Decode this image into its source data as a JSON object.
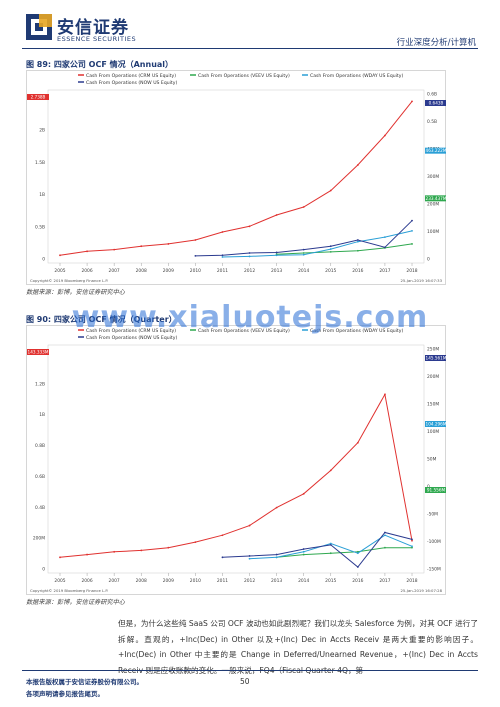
{
  "header": {
    "brand_cn": "安信证券",
    "brand_en": "ESSENCE SECURITIES",
    "report_type": "行业深度分析/计算机"
  },
  "figures": [
    {
      "title": "图 89:  四家公司 OCF 情况（Annual）",
      "source": "数据来源：彭博，安信证券研究中心",
      "copyright": "Copyright© 2019 Bloomberg Finance L.P.",
      "stamp": "25-Jan-2019 16:07:33",
      "legend": [
        "Cash From Operations (CRM US Equity)",
        "Cash From Operations (VEEV US Equity)",
        "Cash From Operations (WDAY US Equity)",
        "Cash From Operations (NOW US Equity)"
      ],
      "left_ticks": [
        "2.5B",
        "2B",
        "1.5B",
        "1B",
        "0.5B",
        "0"
      ],
      "right_ticks": [
        "0.6B",
        "0.5B",
        "400M",
        "300M",
        "200M",
        "100M",
        "0"
      ],
      "x_years": [
        "2005",
        "2006",
        "2007",
        "2008",
        "2009",
        "2010",
        "2011",
        "2012",
        "2013",
        "2014",
        "2015",
        "2016",
        "2017",
        "2018"
      ],
      "value_tags": [
        {
          "text": "2.738B",
          "color": "#e0312f",
          "side": "left"
        },
        {
          "text": "0.643B",
          "color": "#2b3a8f",
          "side": "right"
        },
        {
          "text": "463.222M",
          "color": "#2a9fd6",
          "side": "right"
        },
        {
          "text": "233.437M",
          "color": "#2fa84f",
          "side": "right"
        }
      ]
    },
    {
      "title": "图 90:  四家公司 OCF 情况（Quarter）",
      "source": "数据来源：彭博，安信证券研究中心",
      "copyright": "Copyright© 2019 Bloomberg Finance L.P.",
      "stamp": "25-Jan-2019 16:07:28",
      "legend": [
        "Cash From Operations (CRM US Equity)",
        "Cash From Operations (VEEV US Equity)",
        "Cash From Operations (WDAY US Equity)",
        "Cash From Operations (NOW US Equity)"
      ],
      "left_ticks": [
        "1.4B",
        "1.2B",
        "1B",
        "0.8B",
        "0.6B",
        "0.4B",
        "200M",
        "0"
      ],
      "right_ticks": [
        "250M",
        "200M",
        "150M",
        "100M",
        "50M",
        "0",
        "-50M",
        "-100M",
        "-150M"
      ],
      "x_years": [
        "2005",
        "2006",
        "2007",
        "2008",
        "2009",
        "2010",
        "2011",
        "2012",
        "2013",
        "2014",
        "2015",
        "2016",
        "2017",
        "2018"
      ],
      "value_tags": [
        {
          "text": "143.333M",
          "color": "#e0312f",
          "side": "left"
        },
        {
          "text": "145.561M",
          "color": "#2b3a8f",
          "side": "right"
        },
        {
          "text": "104.296M",
          "color": "#2a9fd6",
          "side": "right"
        },
        {
          "text": "91.556M",
          "color": "#2fa84f",
          "side": "right"
        }
      ]
    }
  ],
  "series_colors": {
    "CRM": "#e0312f",
    "VEEV": "#2fa84f",
    "WDAY": "#2a9fd6",
    "NOW": "#2b3a8f"
  },
  "chart_data": [
    {
      "type": "line",
      "title": "",
      "x": [
        "2005",
        "2006",
        "2007",
        "2008",
        "2009",
        "2010",
        "2011",
        "2012",
        "2013",
        "2014",
        "2015",
        "2016",
        "2017",
        "2018"
      ],
      "series": [
        {
          "name": "Cash From Operations (CRM US Equity)",
          "values": [
            0.03,
            0.1,
            0.13,
            0.19,
            0.23,
            0.3,
            0.44,
            0.54,
            0.74,
            0.88,
            1.17,
            1.62,
            2.14,
            2.74
          ]
        },
        {
          "name": "Cash From Operations (VEEV US Equity)",
          "values": [
            null,
            null,
            null,
            null,
            null,
            null,
            null,
            null,
            0.05,
            0.07,
            0.09,
            0.11,
            0.16,
            0.23
          ]
        },
        {
          "name": "Cash From Operations (WDAY US Equity)",
          "values": [
            null,
            null,
            null,
            null,
            null,
            null,
            0.0,
            0.01,
            0.03,
            0.04,
            0.14,
            0.27,
            0.35,
            0.46
          ]
        },
        {
          "name": "Cash From Operations (NOW US Equity)",
          "values": [
            null,
            null,
            null,
            null,
            null,
            0.02,
            0.03,
            0.07,
            0.08,
            0.13,
            0.19,
            0.3,
            0.17,
            0.64
          ]
        }
      ],
      "ylim": [
        0,
        2.8
      ],
      "grid": false,
      "legend": "top-left"
    },
    {
      "type": "line",
      "title": "",
      "x": [
        "2005",
        "2006",
        "2007",
        "2008",
        "2009",
        "2010",
        "2011",
        "2012",
        "2013",
        "2014",
        "2015",
        "2016",
        "2017",
        "2018"
      ],
      "series": [
        {
          "name": "Cash From Operations (CRM US Equity)",
          "values": [
            0.02,
            0.04,
            0.06,
            0.07,
            0.09,
            0.13,
            0.18,
            0.25,
            0.38,
            0.48,
            0.65,
            0.85,
            1.2,
            0.14
          ]
        },
        {
          "name": "Cash From Operations (VEEV US Equity)",
          "values": [
            null,
            null,
            null,
            null,
            null,
            null,
            null,
            null,
            0.02,
            0.04,
            0.05,
            0.06,
            0.09,
            0.09
          ]
        },
        {
          "name": "Cash From Operations (WDAY US Equity)",
          "values": [
            null,
            null,
            null,
            null,
            null,
            null,
            null,
            0.01,
            0.02,
            0.06,
            0.12,
            0.05,
            0.18,
            0.1
          ]
        },
        {
          "name": "Cash From Operations (NOW US Equity)",
          "values": [
            null,
            null,
            null,
            null,
            null,
            null,
            0.02,
            0.03,
            0.04,
            0.08,
            0.11,
            -0.05,
            0.2,
            0.15
          ]
        }
      ],
      "ylim": [
        0,
        1.5
      ],
      "grid": false,
      "legend": "top-left"
    }
  ],
  "body": {
    "paragraph": "但是，为什么这些纯 SaaS 公司 OCF 波动也如此剧烈呢？我们以龙头 Salesforce 为例，对其 OCF 进行了拆解。直观的，+Inc(Dec) in Other 以及+(Inc) Dec in Accts Receiv 是两大重要的影响因子。+Inc(Dec) in Other 中主要的是 Change in Deferred/Unearned Revenue，+(Inc) Dec in Accts Receiv 则是应收账款的变化。一般来说，FQ4（Fiscal Quarter 4Q，第"
  },
  "footer": {
    "disclaimer1": "本报告版权属于安信证券股份有限公司。",
    "disclaimer2": "各项声明请参见报告尾页。",
    "page_number": "50"
  },
  "watermark": "www.xialuotejs.com"
}
